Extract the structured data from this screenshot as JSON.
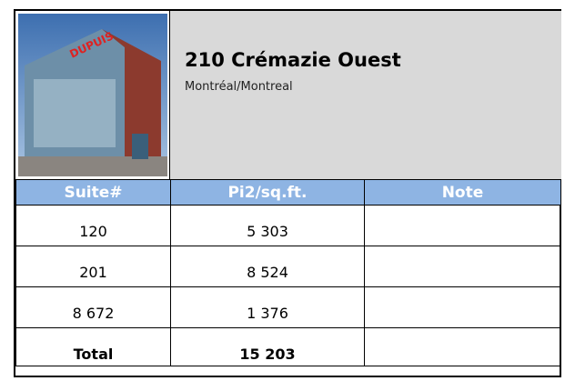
{
  "header": {
    "title": "210 Crémazie Ouest",
    "subtitle": "Montréal/Montreal"
  },
  "table": {
    "columns": [
      "Suite#",
      "Pi2/sq.ft.",
      "Note"
    ],
    "rows": [
      [
        "120",
        "5 303",
        ""
      ],
      [
        "201",
        "8 524",
        ""
      ],
      [
        "8 672",
        "1 376",
        ""
      ]
    ],
    "total": [
      "Total",
      "15 203",
      ""
    ]
  }
}
